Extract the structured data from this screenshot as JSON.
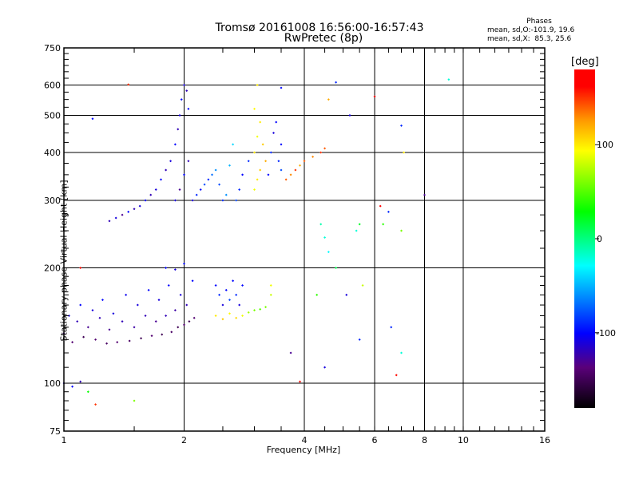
{
  "chart_data": {
    "type": "scatter",
    "title": "Tromsø 20161008 16:56:00-16:57:43",
    "subtitle": "RwPretec (8p)",
    "xlabel": "Frequency [MHz]",
    "ylabel": "Stationary phase Virtual Height [km]",
    "xscale": "log",
    "yscale": "log",
    "xlim": [
      1,
      16
    ],
    "ylim": [
      75,
      750
    ],
    "xticks": [
      1,
      2,
      4,
      6,
      8,
      10,
      16
    ],
    "xtick_labels": [
      "1",
      "2",
      "4",
      "6",
      "8",
      "10",
      "16"
    ],
    "yticks": [
      75,
      100,
      200,
      300,
      400,
      500,
      600,
      750
    ],
    "ytick_labels": [
      "75",
      "100",
      "200",
      "300",
      "400",
      "500",
      "600",
      "750"
    ],
    "x_grid": [
      2,
      4,
      6,
      8,
      10
    ],
    "y_grid": [
      100,
      200,
      300,
      400,
      500,
      600
    ],
    "grid": true,
    "colorbar": {
      "unit": "[deg]",
      "range": [
        -180,
        180
      ],
      "ticks": [
        100,
        0,
        -100
      ],
      "tick_labels": [
        "100",
        "0",
        "-100"
      ]
    },
    "annotation": {
      "heading": "Phases",
      "line1": "mean, sd,O:-101.9, 19.6",
      "line2": "mean, sd,X:  85.3, 25.6"
    },
    "point_format": [
      "frequency_MHz",
      "height_km",
      "phase_deg"
    ],
    "points": [
      [
        1.0,
        135,
        -130
      ],
      [
        1.03,
        150,
        -110
      ],
      [
        1.05,
        128,
        -140
      ],
      [
        1.08,
        145,
        -120
      ],
      [
        1.1,
        160,
        -100
      ],
      [
        1.12,
        132,
        -150
      ],
      [
        1.15,
        140,
        -130
      ],
      [
        1.18,
        155,
        -110
      ],
      [
        1.2,
        130,
        -140
      ],
      [
        1.23,
        148,
        -120
      ],
      [
        1.25,
        165,
        -100
      ],
      [
        1.28,
        127,
        -145
      ],
      [
        1.3,
        138,
        -130
      ],
      [
        1.33,
        152,
        -110
      ],
      [
        1.36,
        128,
        -140
      ],
      [
        1.4,
        145,
        -120
      ],
      [
        1.43,
        170,
        -105
      ],
      [
        1.46,
        129,
        -145
      ],
      [
        1.5,
        140,
        -125
      ],
      [
        1.53,
        160,
        -110
      ],
      [
        1.56,
        131,
        -150
      ],
      [
        1.6,
        150,
        -120
      ],
      [
        1.63,
        175,
        -100
      ],
      [
        1.66,
        133,
        -140
      ],
      [
        1.7,
        145,
        -130
      ],
      [
        1.73,
        165,
        -110
      ],
      [
        1.76,
        134,
        -150
      ],
      [
        1.8,
        150,
        -120
      ],
      [
        1.83,
        180,
        -100
      ],
      [
        1.86,
        136,
        -145
      ],
      [
        1.9,
        155,
        -125
      ],
      [
        1.93,
        140,
        -150
      ],
      [
        1.96,
        170,
        -110
      ],
      [
        2.0,
        142,
        -140
      ],
      [
        2.03,
        160,
        -120
      ],
      [
        2.06,
        145,
        -150
      ],
      [
        2.1,
        185,
        -100
      ],
      [
        2.12,
        148,
        -140
      ],
      [
        1.0,
        100,
        -110
      ],
      [
        1.05,
        98,
        -100
      ],
      [
        1.1,
        101,
        -120
      ],
      [
        1.15,
        95,
        30
      ],
      [
        1.8,
        200,
        -100
      ],
      [
        1.9,
        198,
        -110
      ],
      [
        2.0,
        205,
        -100
      ],
      [
        2.4,
        180,
        -100
      ],
      [
        2.45,
        170,
        -90
      ],
      [
        2.5,
        160,
        -110
      ],
      [
        2.55,
        175,
        -100
      ],
      [
        2.6,
        165,
        -80
      ],
      [
        2.65,
        185,
        -100
      ],
      [
        2.7,
        170,
        -90
      ],
      [
        2.75,
        160,
        -110
      ],
      [
        2.8,
        180,
        -100
      ],
      [
        2.4,
        150,
        100
      ],
      [
        2.5,
        147,
        110
      ],
      [
        2.6,
        152,
        95
      ],
      [
        2.7,
        148,
        105
      ],
      [
        2.8,
        150,
        90
      ],
      [
        2.9,
        153,
        70
      ],
      [
        3.0,
        155,
        60
      ],
      [
        3.1,
        156,
        50
      ],
      [
        3.2,
        158,
        60
      ],
      [
        3.3,
        170,
        80
      ],
      [
        3.3,
        180,
        90
      ],
      [
        1.3,
        265,
        -120
      ],
      [
        1.35,
        270,
        -110
      ],
      [
        1.4,
        275,
        -130
      ],
      [
        1.45,
        280,
        -100
      ],
      [
        1.5,
        285,
        -120
      ],
      [
        1.55,
        290,
        -110
      ],
      [
        1.6,
        300,
        -100
      ],
      [
        1.65,
        310,
        -120
      ],
      [
        1.7,
        320,
        -110
      ],
      [
        1.75,
        340,
        -100
      ],
      [
        1.8,
        360,
        -120
      ],
      [
        1.85,
        380,
        -110
      ],
      [
        1.9,
        420,
        -100
      ],
      [
        1.93,
        460,
        -120
      ],
      [
        1.95,
        500,
        -110
      ],
      [
        1.97,
        550,
        -100
      ],
      [
        2.0,
        600,
        -110
      ],
      [
        2.03,
        580,
        -120
      ],
      [
        2.05,
        520,
        -100
      ],
      [
        1.9,
        300,
        -110
      ],
      [
        1.95,
        320,
        -130
      ],
      [
        2.0,
        350,
        -100
      ],
      [
        2.05,
        380,
        -120
      ],
      [
        2.1,
        300,
        -110
      ],
      [
        2.15,
        310,
        -90
      ],
      [
        2.2,
        320,
        -100
      ],
      [
        2.25,
        330,
        -80
      ],
      [
        2.3,
        340,
        -90
      ],
      [
        2.35,
        350,
        -70
      ],
      [
        2.4,
        360,
        -60
      ],
      [
        2.45,
        330,
        -80
      ],
      [
        2.5,
        300,
        -90
      ],
      [
        2.55,
        310,
        -60
      ],
      [
        2.6,
        370,
        -50
      ],
      [
        2.65,
        420,
        -40
      ],
      [
        2.7,
        300,
        -80
      ],
      [
        2.75,
        320,
        -90
      ],
      [
        2.8,
        350,
        -100
      ],
      [
        2.9,
        380,
        -90
      ],
      [
        3.0,
        320,
        90
      ],
      [
        3.05,
        340,
        100
      ],
      [
        3.1,
        360,
        110
      ],
      [
        3.0,
        400,
        100
      ],
      [
        3.05,
        440,
        90
      ],
      [
        3.1,
        480,
        100
      ],
      [
        3.15,
        420,
        110
      ],
      [
        3.2,
        380,
        120
      ],
      [
        3.0,
        520,
        95
      ],
      [
        3.05,
        600,
        100
      ],
      [
        3.25,
        350,
        -100
      ],
      [
        3.3,
        400,
        -90
      ],
      [
        3.35,
        450,
        -110
      ],
      [
        3.4,
        480,
        -100
      ],
      [
        3.45,
        380,
        -90
      ],
      [
        3.5,
        360,
        -80
      ],
      [
        3.5,
        420,
        -100
      ],
      [
        3.6,
        340,
        140
      ],
      [
        3.7,
        350,
        130
      ],
      [
        3.8,
        360,
        150
      ],
      [
        3.9,
        370,
        120
      ],
      [
        4.0,
        380,
        140
      ],
      [
        4.2,
        390,
        130
      ],
      [
        4.4,
        400,
        150
      ],
      [
        4.5,
        410,
        140
      ],
      [
        3.5,
        590,
        -100
      ],
      [
        4.8,
        610,
        -90
      ],
      [
        5.2,
        500,
        -110
      ],
      [
        4.6,
        550,
        120
      ],
      [
        6.0,
        560,
        170
      ],
      [
        9.2,
        620,
        -20
      ],
      [
        7.0,
        470,
        -90
      ],
      [
        7.1,
        400,
        100
      ],
      [
        6.5,
        280,
        -90
      ],
      [
        6.2,
        290,
        170
      ],
      [
        6.3,
        260,
        40
      ],
      [
        7.0,
        250,
        60
      ],
      [
        4.4,
        260,
        -10
      ],
      [
        4.5,
        240,
        -20
      ],
      [
        4.6,
        220,
        -30
      ],
      [
        4.8,
        200,
        10
      ],
      [
        5.6,
        180,
        80
      ],
      [
        4.3,
        170,
        40
      ],
      [
        4.5,
        110,
        -110
      ],
      [
        6.8,
        105,
        160
      ],
      [
        5.1,
        170,
        -110
      ],
      [
        5.5,
        130,
        -90
      ],
      [
        6.6,
        140,
        -90
      ],
      [
        7.0,
        120,
        -20
      ],
      [
        3.7,
        120,
        -130
      ],
      [
        3.9,
        101,
        160
      ],
      [
        1.5,
        90,
        60
      ],
      [
        1.2,
        88,
        150
      ],
      [
        1.1,
        200,
        160
      ],
      [
        1.45,
        602,
        150
      ],
      [
        1.18,
        490,
        -100
      ],
      [
        8.0,
        310,
        -130
      ],
      [
        5.4,
        250,
        -20
      ],
      [
        5.5,
        260,
        20
      ]
    ]
  }
}
